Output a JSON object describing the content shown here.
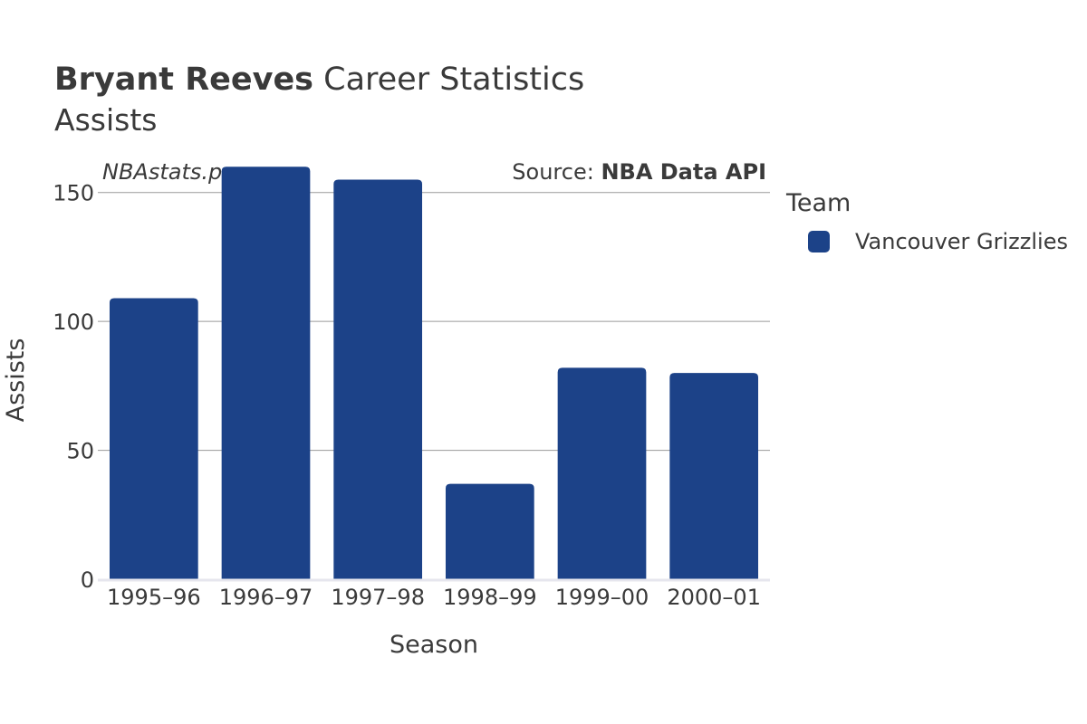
{
  "header": {
    "title_bold": "Bryant Reeves",
    "title_rest": " Career Statistics",
    "subtitle": "Assists",
    "watermark": "NBAstats.pro",
    "source_prefix": "Source: ",
    "source_name": "NBA Data API"
  },
  "legend": {
    "title": "Team",
    "items": [
      {
        "label": "Vancouver Grizzlies",
        "color": "#1c4288"
      }
    ]
  },
  "chart_data": {
    "type": "bar",
    "categories": [
      "1995–96",
      "1996–97",
      "1997–98",
      "1998–99",
      "1999–00",
      "2000–01"
    ],
    "series": [
      {
        "name": "Vancouver Grizzlies",
        "values": [
          109,
          160,
          155,
          37,
          82,
          80
        ],
        "color": "#1c4288"
      }
    ],
    "xlabel": "Season",
    "ylabel": "Assists",
    "ylim": [
      0,
      165
    ],
    "yticks": [
      0,
      50,
      100,
      150
    ],
    "grid": true,
    "legend_position": "right"
  }
}
